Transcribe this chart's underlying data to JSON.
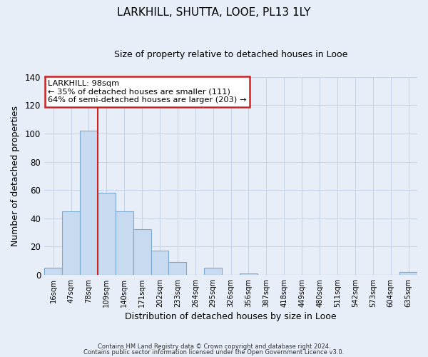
{
  "title": "LARKHILL, SHUTTA, LOOE, PL13 1LY",
  "subtitle": "Size of property relative to detached houses in Looe",
  "xlabel": "Distribution of detached houses by size in Looe",
  "ylabel": "Number of detached properties",
  "bar_color": "#c8daf0",
  "bar_edge_color": "#7baad0",
  "bin_labels": [
    "16sqm",
    "47sqm",
    "78sqm",
    "109sqm",
    "140sqm",
    "171sqm",
    "202sqm",
    "233sqm",
    "264sqm",
    "295sqm",
    "326sqm",
    "356sqm",
    "387sqm",
    "418sqm",
    "449sqm",
    "480sqm",
    "511sqm",
    "542sqm",
    "573sqm",
    "604sqm",
    "635sqm"
  ],
  "bar_heights": [
    5,
    45,
    102,
    58,
    45,
    32,
    17,
    9,
    0,
    5,
    0,
    1,
    0,
    0,
    0,
    0,
    0,
    0,
    0,
    0,
    2
  ],
  "ylim": [
    0,
    140
  ],
  "yticks": [
    0,
    20,
    40,
    60,
    80,
    100,
    120,
    140
  ],
  "vline_x_index": 2,
  "vline_color": "#cc2222",
  "annotation_title": "LARKHILL: 98sqm",
  "annotation_line1": "← 35% of detached houses are smaller (111)",
  "annotation_line2": "64% of semi-detached houses are larger (203) →",
  "annotation_box_color": "#ffffff",
  "annotation_box_edge": "#cc2222",
  "footer1": "Contains HM Land Registry data © Crown copyright and database right 2024.",
  "footer2": "Contains public sector information licensed under the Open Government Licence v3.0.",
  "background_color": "#e8eef8",
  "plot_bg_color": "#e8eef8",
  "grid_color": "#c8d4e8"
}
